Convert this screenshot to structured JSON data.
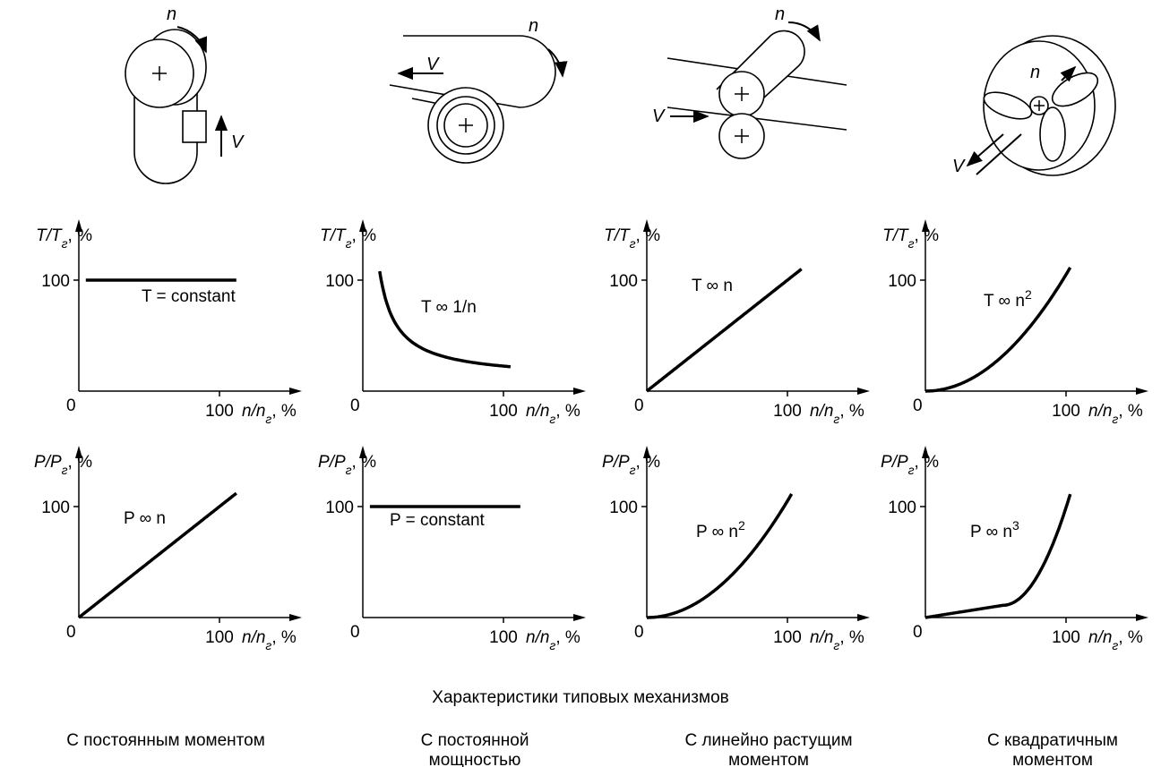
{
  "illustrations": [
    {
      "rotation": "n",
      "speed": "V"
    },
    {
      "rotation": "n",
      "speed": "V"
    },
    {
      "rotation": "n",
      "speed": "V"
    },
    {
      "rotation": "n",
      "speed": "V"
    }
  ],
  "columns": [
    {
      "torque_chart": {
        "y_label": {
          "symbol": "T/T",
          "subscript": "г",
          "unit": ", %"
        },
        "x_label": {
          "symbol": "n/n",
          "subscript": "г",
          "unit": ", %"
        },
        "origin": "0",
        "y_tick": "100",
        "x_tick": "100",
        "curve_label": {
          "text": "T = constant"
        }
      },
      "power_chart": {
        "y_label": {
          "symbol": "P/P",
          "subscript": "г",
          "unit": ", %"
        },
        "x_label": {
          "symbol": "n/n",
          "subscript": "г",
          "unit": ", %"
        },
        "origin": "0",
        "y_tick": "100",
        "x_tick": "100",
        "curve_label": {
          "text": "P ∞ n"
        }
      },
      "caption": [
        "С постоянным моментом"
      ]
    },
    {
      "torque_chart": {
        "y_label": {
          "symbol": "T/T",
          "subscript": "г",
          "unit": ", %"
        },
        "x_label": {
          "symbol": "n/n",
          "subscript": "г",
          "unit": ", %"
        },
        "origin": "0",
        "y_tick": "100",
        "x_tick": "100",
        "curve_label": {
          "text": "T ∞ 1/n"
        }
      },
      "power_chart": {
        "y_label": {
          "symbol": "P/P",
          "subscript": "г",
          "unit": ", %"
        },
        "x_label": {
          "symbol": "n/n",
          "subscript": "г",
          "unit": ", %"
        },
        "origin": "0",
        "y_tick": "100",
        "x_tick": "100",
        "curve_label": {
          "text": "P = constant"
        }
      },
      "caption": [
        "С постоянной",
        "мощностью"
      ]
    },
    {
      "torque_chart": {
        "y_label": {
          "symbol": "T/T",
          "subscript": "г",
          "unit": ", %"
        },
        "x_label": {
          "symbol": "n/n",
          "subscript": "г",
          "unit": ", %"
        },
        "origin": "0",
        "y_tick": "100",
        "x_tick": "100",
        "curve_label": {
          "text": "T ∞ n"
        }
      },
      "power_chart": {
        "y_label": {
          "symbol": "P/P",
          "subscript": "г",
          "unit": ", %"
        },
        "x_label": {
          "symbol": "n/n",
          "subscript": "г",
          "unit": ", %"
        },
        "origin": "0",
        "y_tick": "100",
        "x_tick": "100",
        "curve_label": {
          "text": "P ∞ n",
          "sup": "2"
        }
      },
      "caption": [
        "С линейно растущим",
        "моментом"
      ]
    },
    {
      "torque_chart": {
        "y_label": {
          "symbol": "T/T",
          "subscript": "г",
          "unit": ", %"
        },
        "x_label": {
          "symbol": "n/n",
          "subscript": "г",
          "unit": ", %"
        },
        "origin": "0",
        "y_tick": "100",
        "x_tick": "100",
        "curve_label": {
          "text": "T ∞ n",
          "sup": "2"
        }
      },
      "power_chart": {
        "y_label": {
          "symbol": "P/P",
          "subscript": "г",
          "unit": ", %"
        },
        "x_label": {
          "symbol": "n/n",
          "subscript": "г",
          "unit": ", %"
        },
        "origin": "0",
        "y_tick": "100",
        "x_tick": "100",
        "curve_label": {
          "text": "P ∞ n",
          "sup": "3"
        }
      },
      "caption": [
        "С квадратичным",
        "моментом"
      ]
    }
  ],
  "title": "Характеристики типовых механизмов"
}
